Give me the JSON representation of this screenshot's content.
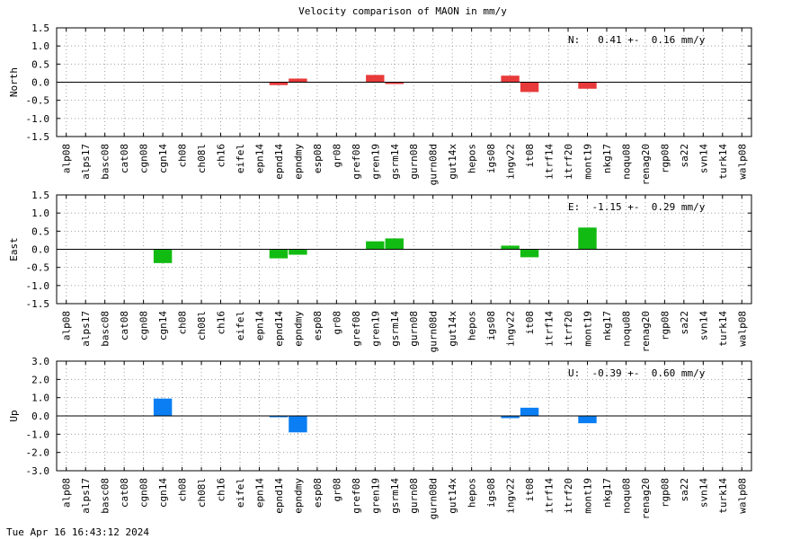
{
  "footer": "Tue Apr 16 16:43:12 2024",
  "colors": {
    "north": "#e83a3a",
    "east": "#12bb12",
    "up": "#0a7ef2",
    "grid": "#a0a0a0",
    "axis": "#000000"
  },
  "chart_data": {
    "type": "bar",
    "title": "Velocity comparison of MAON in mm/y",
    "grid": true,
    "categories": [
      "alp08",
      "alps17",
      "basc08",
      "cat08",
      "cgn08",
      "cgn14",
      "ch08",
      "ch08l",
      "ch16",
      "eifel",
      "epn14",
      "epnd14",
      "epndmy",
      "esp08",
      "gr08",
      "gref08",
      "gren19",
      "gsrm14",
      "gurn08",
      "gurn08d",
      "gut14x",
      "hepos",
      "igs08",
      "ingv22",
      "it08",
      "itrf14",
      "itrf20",
      "mont19",
      "nkg17",
      "noqu08",
      "renag20",
      "rgp08",
      "sa22",
      "svn14",
      "turk14",
      "walp08"
    ],
    "panels": [
      {
        "ylabel": "North",
        "ylim": [
          -1.5,
          1.5
        ],
        "yticks": [
          "1.5",
          "1.0",
          "0.5",
          "0.0",
          "-0.5",
          "-1.0",
          "-1.5"
        ],
        "annotation": "N:   0.41 +-  0.16 mm/y",
        "color": "#e83a3a",
        "values": [
          null,
          null,
          null,
          null,
          null,
          null,
          null,
          null,
          null,
          null,
          null,
          -0.08,
          0.1,
          null,
          null,
          null,
          0.2,
          -0.05,
          null,
          null,
          null,
          null,
          null,
          0.18,
          -0.27,
          null,
          null,
          -0.18,
          null,
          null,
          null,
          null,
          null,
          null,
          null,
          null
        ]
      },
      {
        "ylabel": "East",
        "ylim": [
          -1.5,
          1.5
        ],
        "yticks": [
          "1.5",
          "1.0",
          "0.5",
          "0.0",
          "-0.5",
          "-1.0",
          "-1.5"
        ],
        "annotation": "E:  -1.15 +-  0.29 mm/y",
        "color": "#12bb12",
        "values": [
          null,
          null,
          null,
          null,
          null,
          -0.38,
          null,
          null,
          null,
          null,
          null,
          -0.25,
          -0.15,
          null,
          null,
          null,
          0.22,
          0.3,
          null,
          null,
          null,
          null,
          null,
          0.1,
          -0.22,
          null,
          null,
          0.6,
          null,
          null,
          null,
          null,
          null,
          null,
          null,
          null
        ]
      },
      {
        "ylabel": "Up",
        "ylim": [
          -3.0,
          3.0
        ],
        "yticks": [
          "3.0",
          "2.0",
          "1.0",
          "0.0",
          "-1.0",
          "-2.0",
          "-3.0"
        ],
        "annotation": "U:  -0.39 +-  0.60 mm/y",
        "color": "#0a7ef2",
        "values": [
          null,
          null,
          null,
          null,
          null,
          0.95,
          null,
          null,
          null,
          null,
          null,
          -0.05,
          -0.9,
          null,
          null,
          null,
          null,
          null,
          null,
          null,
          null,
          null,
          null,
          -0.12,
          0.45,
          null,
          null,
          -0.4,
          null,
          null,
          null,
          null,
          null,
          null,
          null,
          null
        ]
      }
    ]
  }
}
